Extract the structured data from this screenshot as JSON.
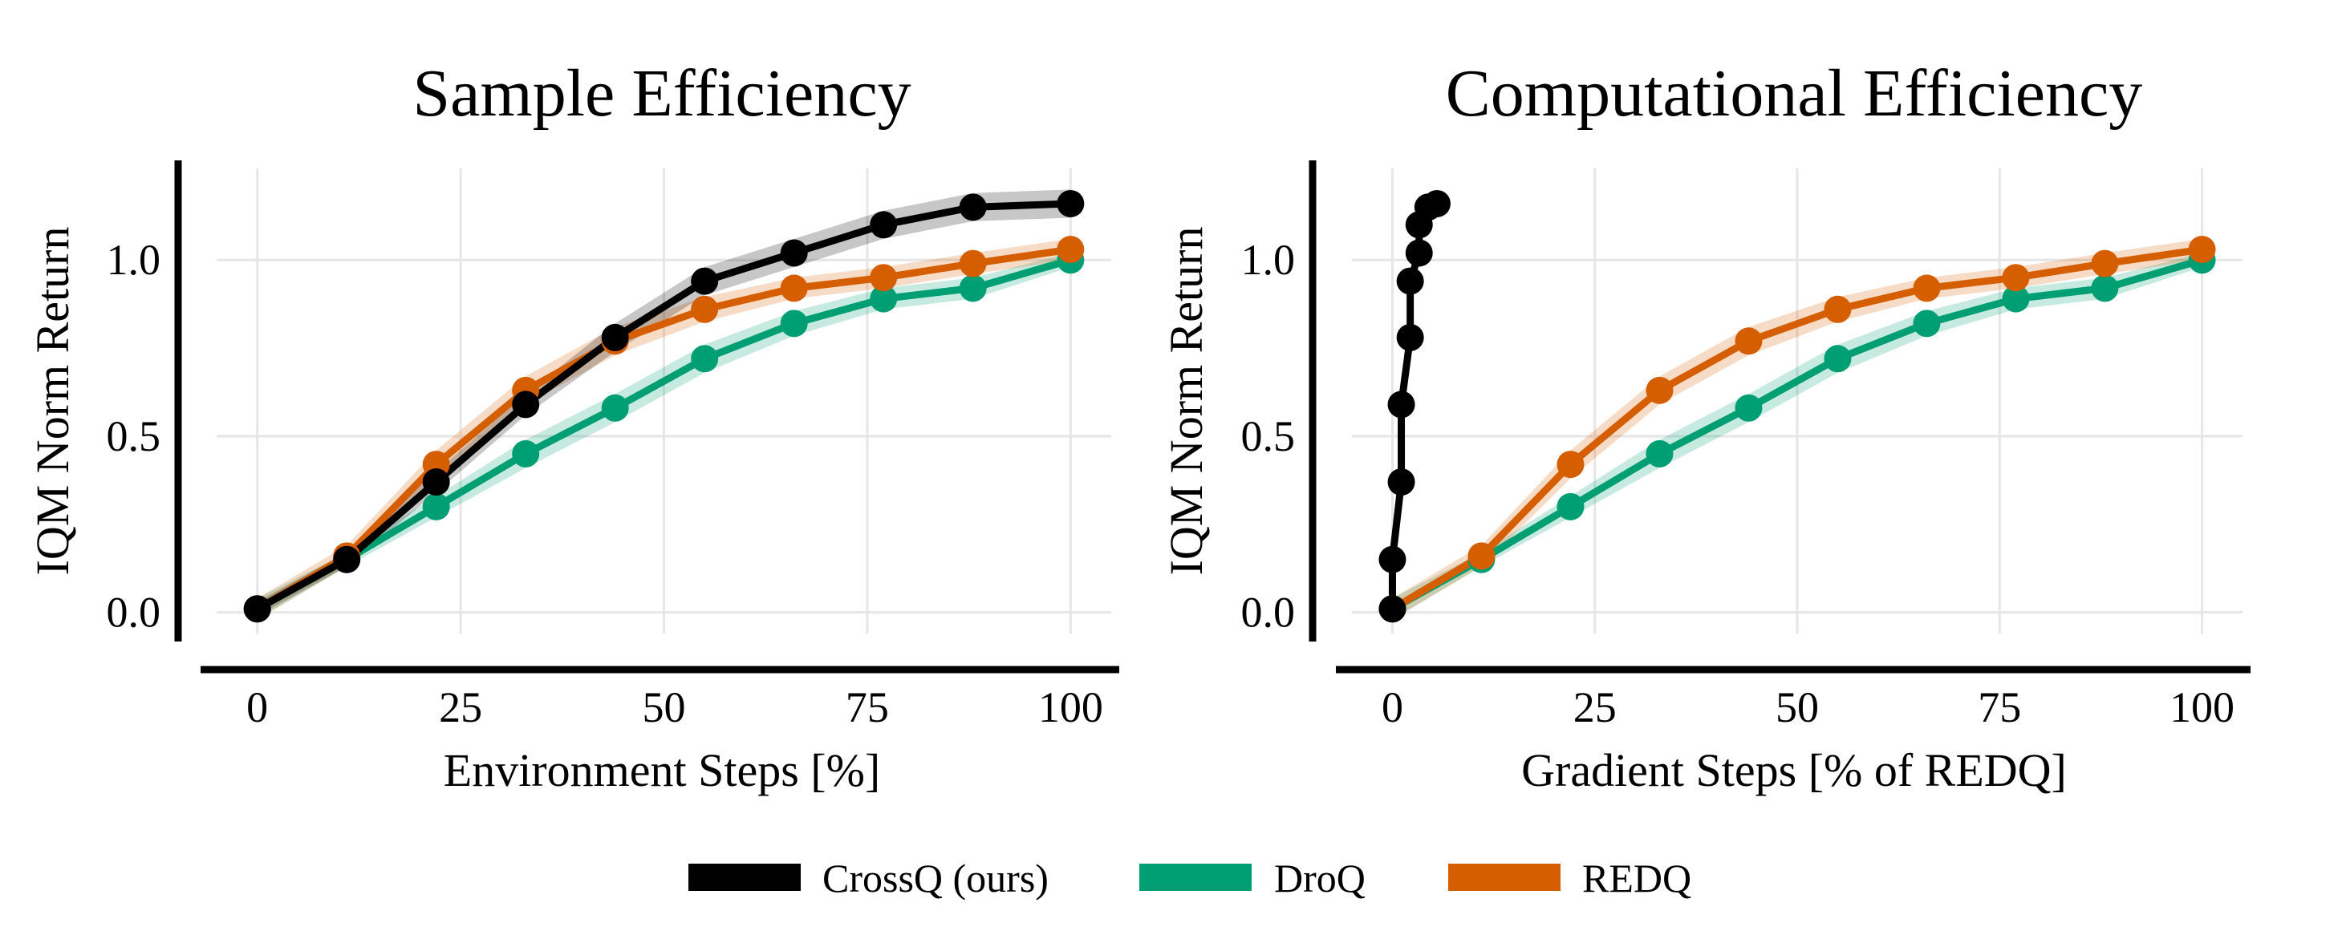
{
  "colors": {
    "CrossQ (ours)": "#000000",
    "DroQ": "#009e73",
    "REDQ": "#d55e00"
  },
  "legend": {
    "items": [
      {
        "label": "CrossQ (ours)",
        "color": "#000000"
      },
      {
        "label": "DroQ",
        "color": "#009e73"
      },
      {
        "label": "REDQ",
        "color": "#d55e00"
      }
    ]
  },
  "chart_data": [
    {
      "type": "line",
      "title": "Sample Efficiency",
      "xlabel": "Environment Steps [%]",
      "ylabel": "IQM Norm Return",
      "xlim": [
        -5,
        105
      ],
      "ylim": [
        -0.06,
        1.26
      ],
      "xticks": [
        0,
        25,
        50,
        75,
        100
      ],
      "xtick_labels": [
        "0",
        "25",
        "50",
        "75",
        "100"
      ],
      "yticks": [
        0.0,
        0.5,
        1.0
      ],
      "ytick_labels": [
        "0.0",
        "0.5",
        "1.0"
      ],
      "grid": true,
      "series": [
        {
          "name": "DroQ",
          "x": [
            0,
            11,
            22,
            33,
            44,
            55,
            66,
            77,
            88,
            100
          ],
          "y": [
            0.01,
            0.15,
            0.3,
            0.45,
            0.58,
            0.72,
            0.82,
            0.89,
            0.92,
            1.0
          ],
          "band": [
            0.03,
            0.02,
            0.03,
            0.04,
            0.04,
            0.04,
            0.035,
            0.03,
            0.03,
            0.02
          ]
        },
        {
          "name": "REDQ",
          "x": [
            0,
            11,
            22,
            33,
            44,
            55,
            66,
            77,
            88,
            100
          ],
          "y": [
            0.01,
            0.16,
            0.42,
            0.63,
            0.77,
            0.86,
            0.92,
            0.95,
            0.99,
            1.03
          ],
          "band": [
            0.03,
            0.03,
            0.04,
            0.04,
            0.04,
            0.035,
            0.03,
            0.03,
            0.03,
            0.03
          ]
        },
        {
          "name": "CrossQ (ours)",
          "x": [
            0,
            11,
            22,
            33,
            44,
            55,
            66,
            77,
            88,
            100
          ],
          "y": [
            0.01,
            0.15,
            0.37,
            0.59,
            0.78,
            0.94,
            1.02,
            1.1,
            1.15,
            1.16
          ],
          "band": [
            0.02,
            0.02,
            0.03,
            0.03,
            0.04,
            0.04,
            0.04,
            0.04,
            0.04,
            0.04
          ]
        }
      ]
    },
    {
      "type": "line",
      "title": "Computational Efficiency",
      "xlabel": "Gradient Steps [% of REDQ]",
      "ylabel": "IQM Norm Return",
      "xlim": [
        -5,
        105
      ],
      "ylim": [
        -0.06,
        1.26
      ],
      "xticks": [
        0,
        25,
        50,
        75,
        100
      ],
      "xtick_labels": [
        "0",
        "25",
        "50",
        "75",
        "100"
      ],
      "yticks": [
        0.0,
        0.5,
        1.0
      ],
      "ytick_labels": [
        "0.0",
        "0.5",
        "1.0"
      ],
      "grid": true,
      "series": [
        {
          "name": "DroQ",
          "x": [
            0,
            11,
            22,
            33,
            44,
            55,
            66,
            77,
            88,
            100
          ],
          "y": [
            0.01,
            0.15,
            0.3,
            0.45,
            0.58,
            0.72,
            0.82,
            0.89,
            0.92,
            1.0
          ],
          "band": [
            0.03,
            0.02,
            0.03,
            0.04,
            0.04,
            0.04,
            0.035,
            0.03,
            0.03,
            0.02
          ]
        },
        {
          "name": "REDQ",
          "x": [
            0,
            11,
            22,
            33,
            44,
            55,
            66,
            77,
            88,
            100
          ],
          "y": [
            0.01,
            0.16,
            0.42,
            0.63,
            0.77,
            0.86,
            0.92,
            0.95,
            0.99,
            1.03
          ],
          "band": [
            0.03,
            0.03,
            0.04,
            0.04,
            0.04,
            0.035,
            0.03,
            0.03,
            0.03,
            0.03
          ]
        },
        {
          "name": "CrossQ (ours)",
          "x": [
            0.0,
            0.0,
            1.1,
            1.1,
            2.2,
            2.2,
            3.3,
            3.3,
            4.4,
            5.5
          ],
          "y": [
            0.01,
            0.15,
            0.37,
            0.59,
            0.78,
            0.94,
            1.02,
            1.1,
            1.15,
            1.16
          ],
          "band": [
            0,
            0,
            0,
            0,
            0,
            0,
            0,
            0,
            0,
            0
          ]
        }
      ]
    }
  ]
}
